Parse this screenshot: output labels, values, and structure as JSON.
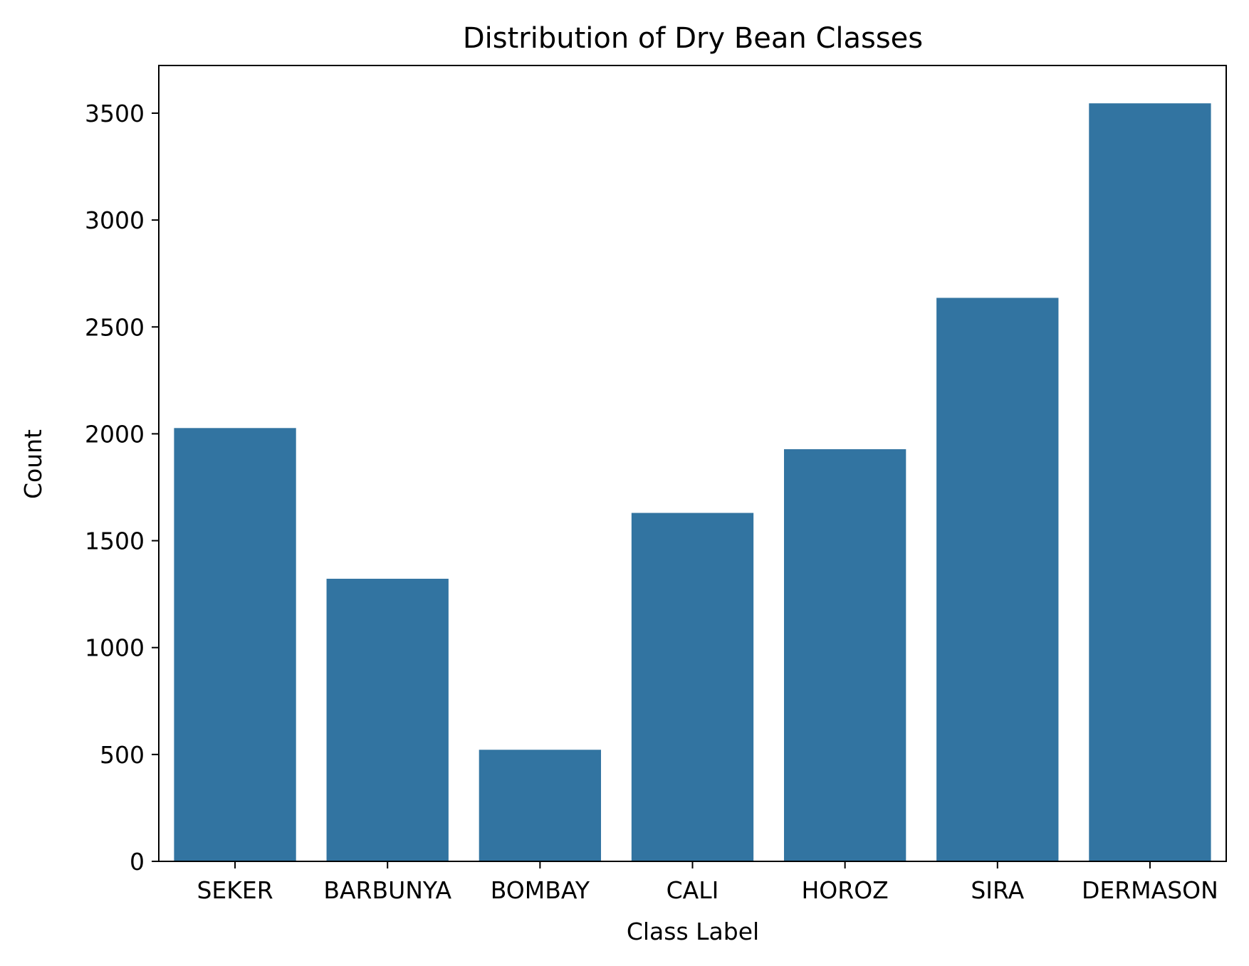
{
  "chart_data": {
    "type": "bar",
    "title": "Distribution of Dry Bean Classes",
    "xlabel": "Class Label",
    "ylabel": "Count",
    "categories": [
      "SEKER",
      "BARBUNYA",
      "BOMBAY",
      "CALI",
      "HOROZ",
      "SIRA",
      "DERMASON"
    ],
    "values": [
      2027,
      1322,
      522,
      1630,
      1928,
      2636,
      3546
    ],
    "ylim": [
      0,
      3723
    ],
    "yticks": [
      0,
      500,
      1000,
      1500,
      2000,
      2500,
      3000,
      3500
    ],
    "grid": false,
    "bar_color": "#3274a1",
    "axis_color": "#000000"
  }
}
